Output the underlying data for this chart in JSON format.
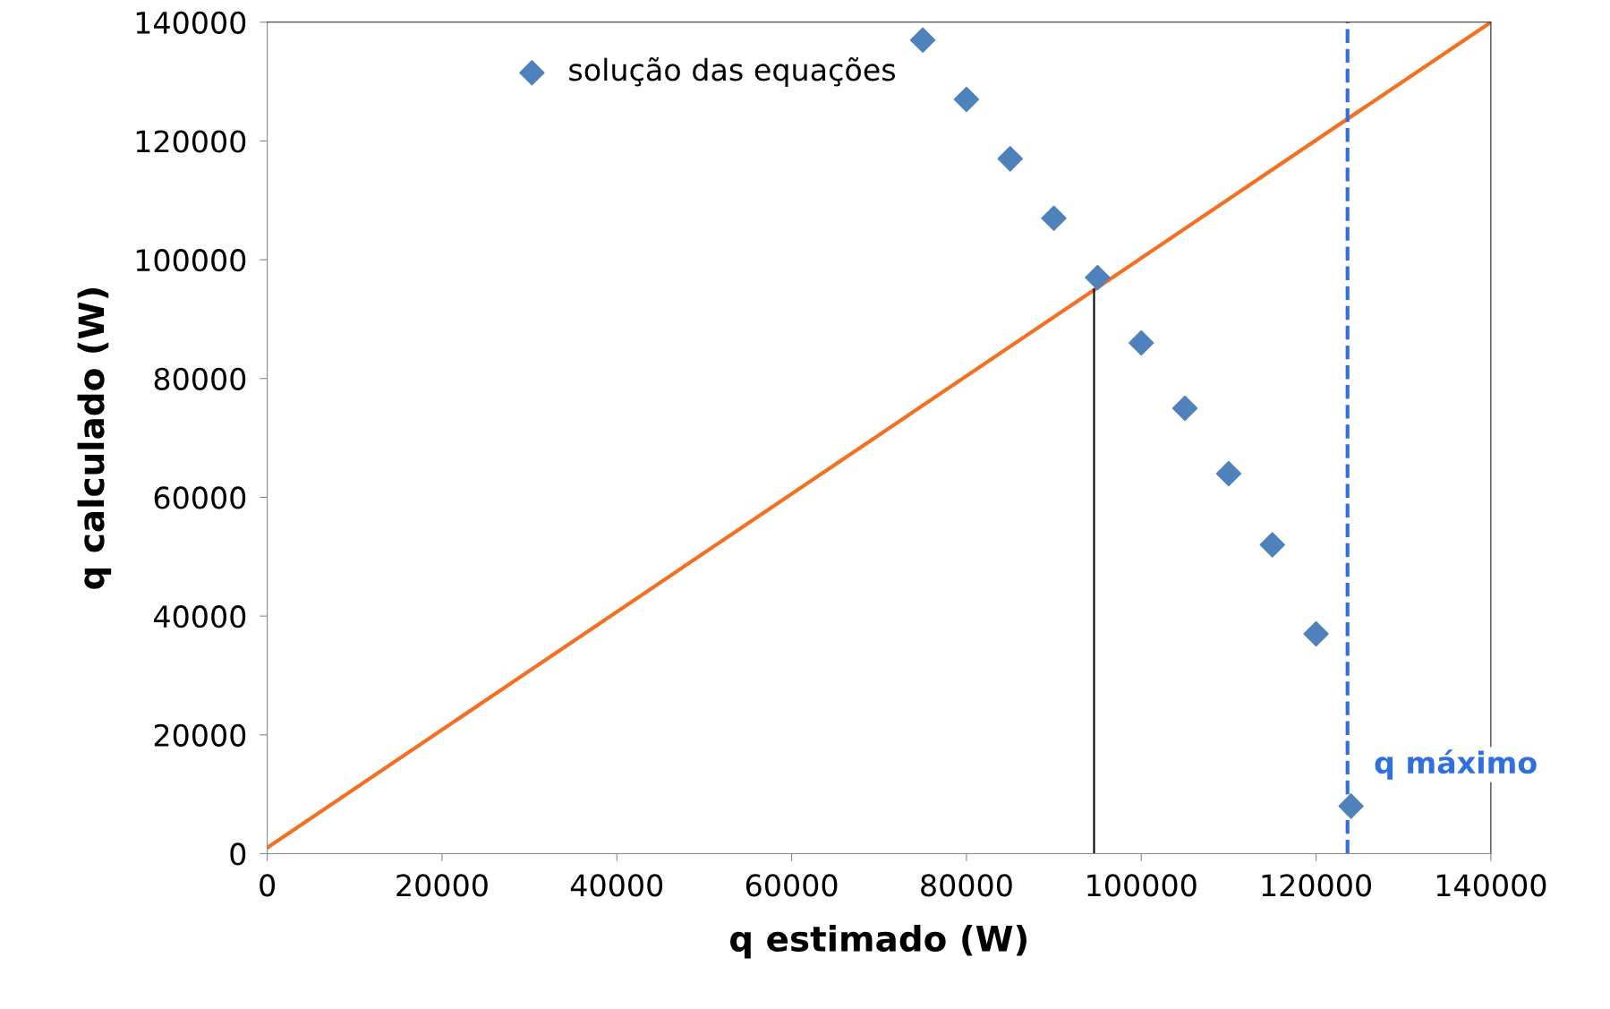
{
  "chart_data": {
    "type": "scatter",
    "xlabel": "q estimado (W)",
    "ylabel": "q calculado (W)",
    "xlim": [
      0,
      140000
    ],
    "ylim": [
      0,
      140000
    ],
    "xticks": [
      0,
      20000,
      40000,
      60000,
      80000,
      100000,
      120000,
      140000
    ],
    "yticks": [
      0,
      20000,
      40000,
      60000,
      80000,
      100000,
      120000,
      140000
    ],
    "grid": false,
    "legend": "top left",
    "series": [
      {
        "name": "solução das equações",
        "marker": "diamond",
        "color": "#4f81bd",
        "x": [
          75000,
          80000,
          85000,
          90000,
          95000,
          100000,
          105000,
          110000,
          115000,
          120000,
          124000
        ],
        "values": [
          137000,
          127000,
          117000,
          107000,
          97000,
          86000,
          75000,
          64000,
          52000,
          37000,
          8000
        ]
      },
      {
        "type": "line",
        "color": "#f47020",
        "x": [
          0,
          140000
        ],
        "values": [
          1000,
          140000
        ]
      },
      {
        "type": "line",
        "color": "#000000",
        "x": [
          94600,
          94600
        ],
        "values": [
          0,
          95000
        ]
      }
    ],
    "ref_lines": [
      {
        "axis": "x",
        "value": 123600,
        "label": "q máximo",
        "color": "#2f6fe0",
        "line_style": "dashed"
      }
    ]
  }
}
